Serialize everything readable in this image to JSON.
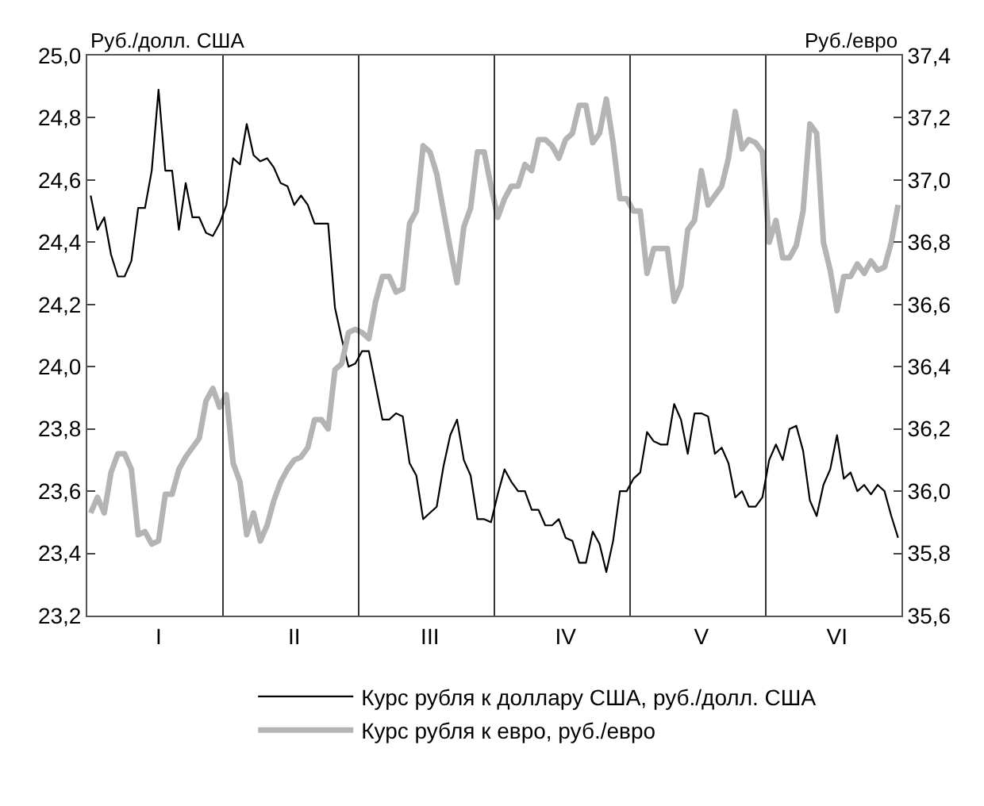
{
  "chart_data": {
    "type": "line",
    "ylabel": "Руб./долл. США",
    "y2label": "Руб./евро",
    "categories": [
      null,
      null,
      null,
      null,
      null,
      null,
      null,
      null,
      null,
      null,
      "I",
      null,
      null,
      null,
      null,
      null,
      null,
      null,
      null,
      null,
      null,
      null,
      null,
      null,
      null,
      null,
      null,
      null,
      null,
      null,
      "II",
      null,
      null,
      null,
      null,
      null,
      null,
      null,
      null,
      null,
      null,
      null,
      null,
      null,
      null,
      null,
      null,
      null,
      null,
      null,
      "III",
      null,
      null,
      null,
      null,
      null,
      null,
      null,
      null,
      null,
      null,
      null,
      null,
      null,
      null,
      null,
      null,
      null,
      null,
      null,
      "IV",
      null,
      null,
      null,
      null,
      null,
      null,
      null,
      null,
      null,
      null,
      null,
      null,
      null,
      null,
      null,
      null,
      null,
      null,
      null,
      "V",
      null,
      null,
      null,
      null,
      null,
      null,
      null,
      null,
      null,
      null,
      null,
      null,
      null,
      null,
      null,
      null,
      null,
      null,
      null,
      "VI",
      null,
      null,
      null,
      null,
      null,
      null,
      null,
      null,
      null
    ],
    "ylim": [
      23.2,
      25.0
    ],
    "yticks": [
      {
        "value": 23.2,
        "label": "23,2"
      },
      {
        "value": 23.4,
        "label": "23,4"
      },
      {
        "value": 23.6,
        "label": "23,6"
      },
      {
        "value": 23.8,
        "label": "23,8"
      },
      {
        "value": 24.0,
        "label": "24,0"
      },
      {
        "value": 24.2,
        "label": "24,2"
      },
      {
        "value": 24.4,
        "label": "24,4"
      },
      {
        "value": 24.6,
        "label": "24,6"
      },
      {
        "value": 24.8,
        "label": "24,8"
      },
      {
        "value": 25.0,
        "label": "25,0"
      }
    ],
    "y2lim": [
      35.6,
      37.4
    ],
    "y2ticks": [
      {
        "value": 35.6,
        "label": "35,6"
      },
      {
        "value": 35.8,
        "label": "35,8"
      },
      {
        "value": 36.0,
        "label": "36,0"
      },
      {
        "value": 36.2,
        "label": "36,2"
      },
      {
        "value": 36.4,
        "label": "36,4"
      },
      {
        "value": 36.6,
        "label": "36,6"
      },
      {
        "value": 36.8,
        "label": "36,8"
      },
      {
        "value": 37.0,
        "label": "37,0"
      },
      {
        "value": 37.2,
        "label": "37,2"
      },
      {
        "value": 37.4,
        "label": "37,4"
      }
    ],
    "grid": "x",
    "legend": "bottom",
    "marker": "none",
    "line_style": "solid",
    "series": [
      {
        "name": "Курс рубля к доллару США, руб./долл. США",
        "color": "#000000",
        "values": [
          24.55,
          24.44,
          24.48,
          24.36,
          24.29,
          24.29,
          24.34,
          24.51,
          24.51,
          24.63,
          24.89,
          24.63,
          24.63,
          24.44,
          24.59,
          24.48,
          24.48,
          24.43,
          24.42,
          24.46,
          24.52,
          24.67,
          24.65,
          24.78,
          24.68,
          24.66,
          24.67,
          24.64,
          24.59,
          24.58,
          24.52,
          24.55,
          24.52,
          24.46,
          24.46,
          24.46,
          24.19,
          24.09,
          24.0,
          24.01,
          24.05,
          24.05,
          23.94,
          23.83,
          23.83,
          23.85,
          23.84,
          23.69,
          23.65,
          23.51,
          23.53,
          23.55,
          23.68,
          23.78,
          23.83,
          23.7,
          23.65,
          23.51,
          23.51,
          23.5,
          23.59,
          23.67,
          23.63,
          23.6,
          23.6,
          23.54,
          23.54,
          23.49,
          23.49,
          23.51,
          23.45,
          23.44,
          23.37,
          23.37,
          23.47,
          23.43,
          23.34,
          23.44,
          23.6,
          23.6,
          23.64,
          23.66,
          23.79,
          23.76,
          23.75,
          23.75,
          23.88,
          23.83,
          23.72,
          23.85,
          23.85,
          23.84,
          23.72,
          23.74,
          23.69,
          23.58,
          23.6,
          23.55,
          23.55,
          23.58,
          23.7,
          23.75,
          23.7,
          23.8,
          23.81,
          23.73,
          23.57,
          23.52,
          23.62,
          23.67,
          23.78,
          23.64,
          23.66,
          23.6,
          23.62,
          23.59,
          23.62,
          23.6,
          23.52,
          23.45
        ]
      },
      {
        "name": "Курс рубля к евро, руб./евро",
        "color": "#b4b4b4",
        "axis": "y2",
        "values": [
          35.93,
          35.98,
          35.93,
          36.06,
          36.12,
          36.12,
          36.07,
          35.86,
          35.87,
          35.83,
          35.84,
          35.99,
          35.99,
          36.07,
          36.11,
          36.14,
          36.17,
          36.29,
          36.33,
          36.27,
          36.31,
          36.09,
          36.03,
          35.86,
          35.93,
          35.84,
          35.89,
          35.97,
          36.03,
          36.07,
          36.1,
          36.11,
          36.14,
          36.23,
          36.23,
          36.2,
          36.39,
          36.41,
          36.51,
          36.52,
          36.51,
          36.49,
          36.61,
          36.69,
          36.69,
          36.64,
          36.65,
          36.86,
          36.9,
          37.11,
          37.09,
          37.02,
          36.9,
          36.78,
          36.67,
          36.85,
          36.91,
          37.09,
          37.09,
          36.98,
          36.88,
          36.94,
          36.98,
          36.98,
          37.05,
          37.03,
          37.13,
          37.13,
          37.11,
          37.07,
          37.13,
          37.15,
          37.24,
          37.24,
          37.12,
          37.15,
          37.26,
          37.12,
          36.94,
          36.94,
          36.9,
          36.9,
          36.7,
          36.78,
          36.78,
          36.78,
          36.61,
          36.66,
          36.84,
          36.87,
          37.03,
          36.92,
          36.95,
          36.98,
          37.07,
          37.22,
          37.1,
          37.13,
          37.12,
          37.09,
          36.8,
          36.87,
          36.75,
          36.75,
          36.79,
          36.9,
          37.18,
          37.15,
          36.8,
          36.71,
          36.58,
          36.69,
          36.69,
          36.73,
          36.7,
          36.74,
          36.71,
          36.72,
          36.8,
          36.92
        ]
      }
    ]
  }
}
